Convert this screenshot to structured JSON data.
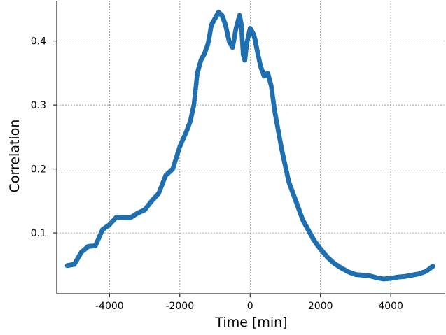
{
  "chart_data": {
    "type": "scatter",
    "title": "",
    "xlabel": "Time [min]",
    "ylabel": "Correlation",
    "xlim": [
      -5500,
      5550
    ],
    "ylim": [
      0.005,
      0.463
    ],
    "xticks": [
      -4000,
      -2000,
      0,
      2000,
      4000
    ],
    "xtick_labels": [
      "-4000",
      "-2000",
      "0",
      "2000",
      "4000"
    ],
    "yticks": [
      0.1,
      0.2,
      0.3,
      0.4
    ],
    "ytick_labels": [
      "0.1",
      "0.2",
      "0.3",
      "0.4"
    ],
    "grid": true,
    "grid_style": "dotted",
    "marker_color": "#1f6fb0",
    "series": [
      {
        "x": [
          -5200,
          -5000,
          -4800,
          -4600,
          -4400,
          -4200,
          -4000,
          -3800,
          -3600,
          -3400,
          -3200,
          -3000,
          -2800,
          -2600,
          -2400,
          -2200,
          -2000,
          -1800,
          -1700,
          -1600,
          -1500,
          -1400,
          -1300,
          -1200,
          -1100,
          -1000,
          -900,
          -800,
          -700,
          -600,
          -500,
          -400,
          -300,
          -250,
          -200,
          -150,
          -100,
          0,
          50,
          100,
          150,
          200,
          300,
          400,
          500,
          600,
          700,
          800,
          900,
          1000,
          1100,
          1200,
          1300,
          1400,
          1500,
          1600,
          1700,
          1800,
          1900,
          2000,
          2200,
          2400,
          2600,
          2800,
          3000,
          3200,
          3400,
          3600,
          3800,
          4000,
          4200,
          4400,
          4600,
          4800,
          5000,
          5200
        ],
        "y": [
          0.049,
          0.051,
          0.07,
          0.079,
          0.08,
          0.105,
          0.113,
          0.125,
          0.124,
          0.124,
          0.131,
          0.136,
          0.15,
          0.162,
          0.19,
          0.2,
          0.235,
          0.26,
          0.275,
          0.3,
          0.35,
          0.37,
          0.38,
          0.395,
          0.425,
          0.435,
          0.445,
          0.44,
          0.425,
          0.4,
          0.39,
          0.42,
          0.44,
          0.425,
          0.38,
          0.37,
          0.395,
          0.42,
          0.415,
          0.41,
          0.4,
          0.385,
          0.36,
          0.345,
          0.35,
          0.33,
          0.29,
          0.26,
          0.23,
          0.205,
          0.18,
          0.165,
          0.15,
          0.135,
          0.12,
          0.11,
          0.1,
          0.09,
          0.082,
          0.075,
          0.062,
          0.052,
          0.045,
          0.039,
          0.035,
          0.034,
          0.033,
          0.03,
          0.028,
          0.029,
          0.031,
          0.032,
          0.034,
          0.036,
          0.04,
          0.048
        ]
      }
    ]
  }
}
